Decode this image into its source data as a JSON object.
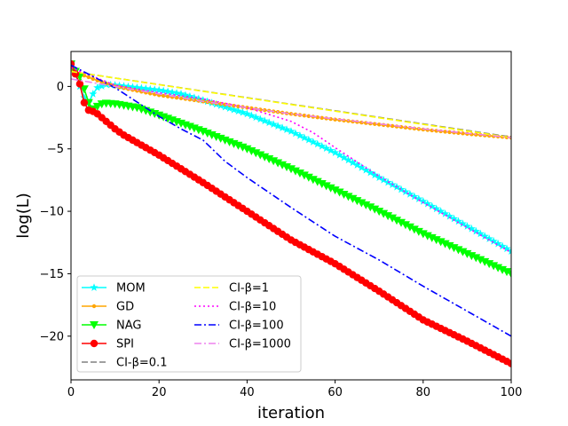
{
  "chart_data": {
    "type": "line",
    "title": "",
    "xlabel": "iteration",
    "ylabel": "log(L)",
    "xlim": [
      0,
      100
    ],
    "ylim": [
      -23.5,
      2.8
    ],
    "xticks": [
      0,
      20,
      40,
      60,
      80,
      100
    ],
    "xtick_labels": [
      "0",
      "20",
      "40",
      "60",
      "80",
      "100"
    ],
    "yticks": [
      0,
      -5,
      -10,
      -15,
      -20
    ],
    "ytick_labels": [
      "0",
      "−5",
      "−10",
      "−15",
      "−20"
    ],
    "grid": false,
    "legend": {
      "location": "lower-left",
      "columns": 2
    },
    "series": [
      {
        "name": "MOM",
        "color": "#00ffff",
        "style": "solid",
        "marker": "star",
        "x": [
          0,
          1,
          2,
          3,
          4,
          5,
          6,
          8,
          10,
          15,
          20,
          25,
          30,
          40,
          50,
          60,
          70,
          80,
          90,
          100
        ],
        "y": [
          1.8,
          1.0,
          0.0,
          -0.9,
          -1.3,
          -0.6,
          -0.1,
          0.15,
          0.1,
          -0.1,
          -0.3,
          -0.6,
          -1.1,
          -2.2,
          -3.6,
          -5.3,
          -7.3,
          -9.2,
          -11.2,
          -13.2
        ]
      },
      {
        "name": "GD",
        "color": "#ffa500",
        "style": "solid",
        "marker": "point",
        "x": [
          0,
          5,
          10,
          20,
          30,
          40,
          50,
          60,
          70,
          80,
          90,
          100
        ],
        "y": [
          1.3,
          0.6,
          0.0,
          -0.7,
          -1.2,
          -1.7,
          -2.2,
          -2.65,
          -3.05,
          -3.45,
          -3.8,
          -4.1
        ]
      },
      {
        "name": "NAG",
        "color": "#00ff00",
        "style": "solid",
        "marker": "triangle-down",
        "x": [
          0,
          1,
          2,
          3,
          4,
          5,
          6,
          7,
          8,
          10,
          15,
          20,
          30,
          40,
          50,
          60,
          70,
          80,
          90,
          100
        ],
        "y": [
          1.8,
          1.2,
          0.8,
          -0.2,
          -1.3,
          -1.8,
          -1.6,
          -1.4,
          -1.35,
          -1.4,
          -1.7,
          -2.3,
          -3.6,
          -5.0,
          -6.6,
          -8.3,
          -10.0,
          -11.8,
          -13.4,
          -15.0
        ]
      },
      {
        "name": "SPI",
        "color": "#ff0000",
        "style": "solid",
        "marker": "circle",
        "x": [
          0,
          1,
          2,
          3,
          4,
          5,
          6,
          8,
          10,
          12,
          15,
          20,
          30,
          40,
          50,
          60,
          70,
          80,
          90,
          100
        ],
        "y": [
          1.8,
          1.0,
          0.2,
          -1.3,
          -1.9,
          -2.0,
          -2.2,
          -2.8,
          -3.4,
          -3.9,
          -4.5,
          -5.5,
          -7.7,
          -10.0,
          -12.3,
          -14.2,
          -16.4,
          -18.7,
          -20.4,
          -22.2
        ]
      },
      {
        "name": "CI-β=0.1",
        "color": "#808080",
        "style": "dashed",
        "marker": "none",
        "x": [
          0,
          100
        ],
        "y": [
          1.2,
          -4.05
        ]
      },
      {
        "name": "CI-β=1",
        "color": "#ffff00",
        "style": "dashed",
        "marker": "none",
        "x": [
          0,
          100
        ],
        "y": [
          1.2,
          -4.1
        ]
      },
      {
        "name": "CI-β=10",
        "color": "#ff00ff",
        "style": "dotted",
        "marker": "none",
        "x": [
          0,
          10,
          20,
          30,
          40,
          50,
          55,
          60,
          70,
          80,
          90,
          100
        ],
        "y": [
          1.5,
          0.1,
          -0.5,
          -1.0,
          -1.7,
          -2.8,
          -3.7,
          -4.9,
          -7.2,
          -9.3,
          -11.3,
          -13.3
        ]
      },
      {
        "name": "CI-β=100",
        "color": "#0000ff",
        "style": "dashdot",
        "marker": "none",
        "x": [
          0,
          10,
          20,
          25,
          30,
          35,
          40,
          50,
          60,
          70,
          80,
          90,
          100
        ],
        "y": [
          1.7,
          -0.1,
          -2.4,
          -3.4,
          -4.3,
          -6.0,
          -7.3,
          -9.7,
          -12.0,
          -13.9,
          -16.0,
          -18.0,
          -20.0
        ]
      },
      {
        "name": "CI-β=1000",
        "color": "#ee82ee",
        "style": "dashdot",
        "marker": "none",
        "x": [
          0,
          10,
          20,
          30,
          40,
          50,
          60,
          70,
          80,
          90,
          100
        ],
        "y": [
          0.6,
          0.0,
          -0.6,
          -1.2,
          -1.7,
          -2.2,
          -2.6,
          -3.0,
          -3.4,
          -3.75,
          -4.1
        ]
      }
    ]
  }
}
